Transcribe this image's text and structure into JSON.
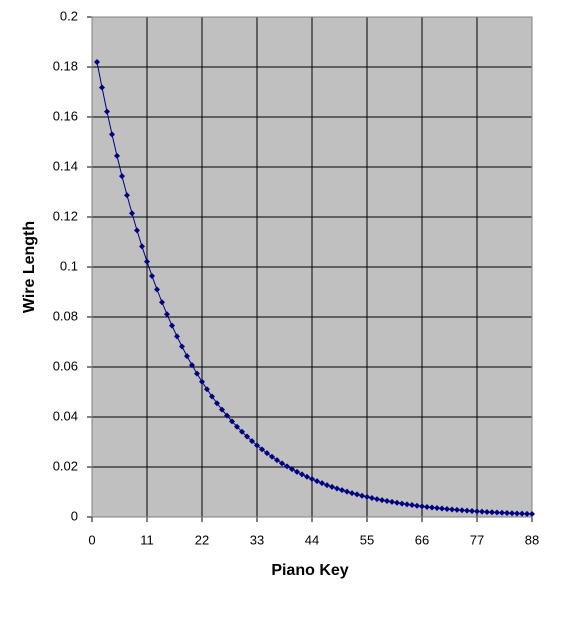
{
  "chart_data": {
    "type": "line",
    "x_label": "Piano Key",
    "y_label": "Wire Length",
    "x": [
      1,
      2,
      3,
      4,
      5,
      6,
      7,
      8,
      9,
      10,
      11,
      12,
      13,
      14,
      15,
      16,
      17,
      18,
      19,
      20,
      21,
      22,
      23,
      24,
      25,
      26,
      27,
      28,
      29,
      30,
      31,
      32,
      33,
      34,
      35,
      36,
      37,
      38,
      39,
      40,
      41,
      42,
      43,
      44,
      45,
      46,
      47,
      48,
      49,
      50,
      51,
      52,
      53,
      54,
      55,
      56,
      57,
      58,
      59,
      60,
      61,
      62,
      63,
      64,
      65,
      66,
      67,
      68,
      69,
      70,
      71,
      72,
      73,
      74,
      75,
      76,
      77,
      78,
      79,
      80,
      81,
      82,
      83,
      84,
      85,
      86,
      87,
      88
    ],
    "values": [
      0.182,
      0.17179,
      0.16215,
      0.15305,
      0.14446,
      0.13635,
      0.1287,
      0.12148,
      0.11466,
      0.10823,
      0.10215,
      0.09642,
      0.091,
      0.0859,
      0.08108,
      0.07653,
      0.07223,
      0.06818,
      0.06435,
      0.06074,
      0.05733,
      0.05411,
      0.05108,
      0.04821,
      0.0455,
      0.04295,
      0.04054,
      0.03826,
      0.03612,
      0.03409,
      0.03218,
      0.03037,
      0.02867,
      0.02706,
      0.02554,
      0.0241,
      0.02275,
      0.02147,
      0.02027,
      0.01913,
      0.01806,
      0.01704,
      0.01609,
      0.01518,
      0.01433,
      0.01353,
      0.01277,
      0.01205,
      0.01138,
      0.01074,
      0.01013,
      0.00957,
      0.00903,
      0.00852,
      0.00804,
      0.00759,
      0.00717,
      0.00676,
      0.00638,
      0.00603,
      0.00569,
      0.00537,
      0.00507,
      0.00478,
      0.00451,
      0.00426,
      0.00402,
      0.0038,
      0.00358,
      0.00338,
      0.00319,
      0.00301,
      0.00284,
      0.00268,
      0.00253,
      0.00239,
      0.00226,
      0.00213,
      0.00201,
      0.0019,
      0.00179,
      0.00169,
      0.0016,
      0.00151,
      0.00142,
      0.00134,
      0.00127,
      0.0012
    ],
    "color": "#000080",
    "plot_background": "#c0c0c0",
    "xlim": [
      0,
      88
    ],
    "xticks": [
      0,
      11,
      22,
      33,
      44,
      55,
      66,
      77,
      88
    ],
    "ylim": [
      0,
      0.2
    ],
    "yticks": [
      0,
      0.02,
      0.04,
      0.06,
      0.08,
      0.1,
      0.12,
      0.14,
      0.16,
      0.18,
      0.2
    ],
    "grid": true
  }
}
